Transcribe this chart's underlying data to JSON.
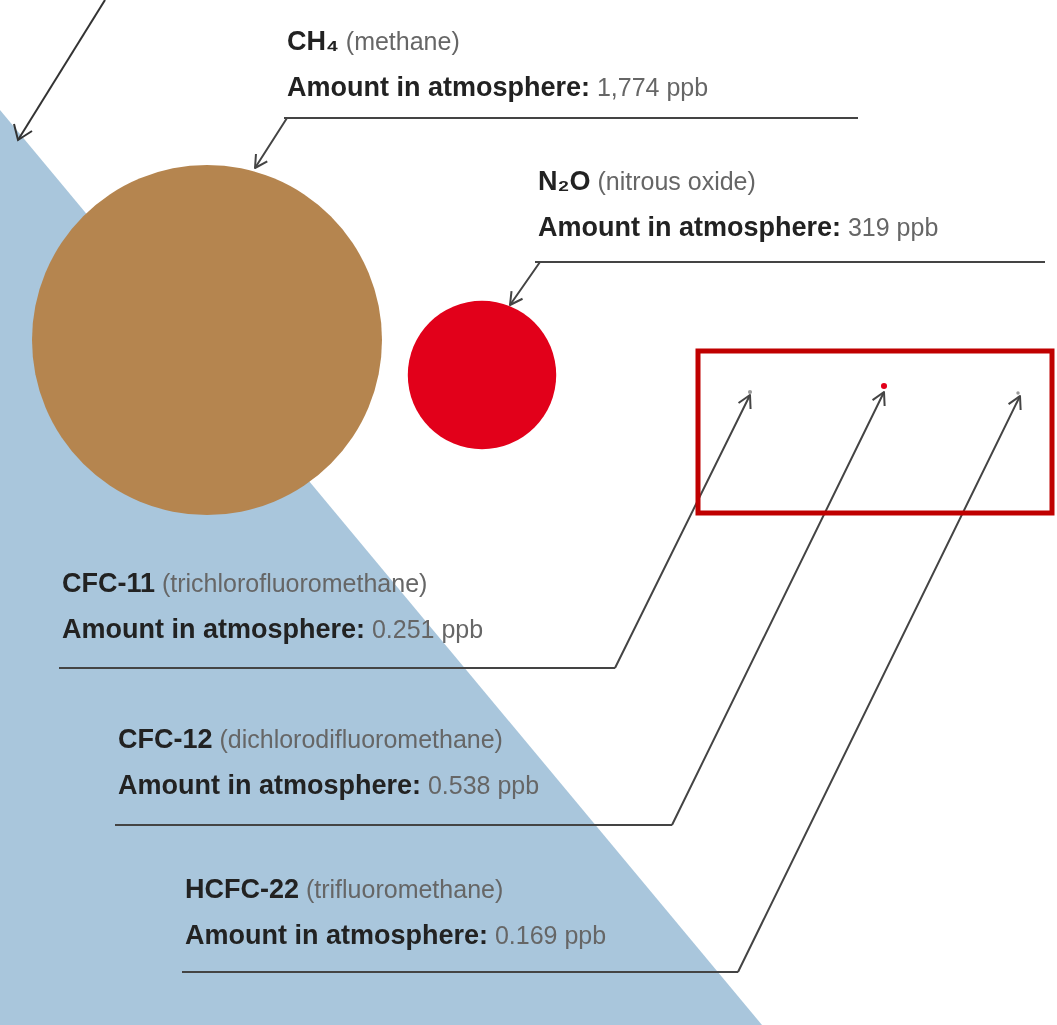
{
  "chart_data": {
    "type": "other",
    "categories": [
      "CH₄ (methane)",
      "N₂O (nitrous oxide)",
      "CFC-11 (trichlorofluoromethane)",
      "CFC-12 (dichlorodifluoromethane)",
      "HCFC-22 (trifluoromethane)"
    ],
    "values": [
      1774,
      319,
      0.251,
      0.538,
      0.169
    ],
    "value_labels": [
      "Amount in atmosphere: 1,774 ppb",
      "Amount in atmosphere: 319 ppb",
      "Amount in atmosphere: 0.251 ppb",
      "Amount in atmosphere: 0.538 ppb",
      "Amount in atmosphere: 0.169 ppb"
    ],
    "colors": [
      "#b5854f",
      "#e2001a",
      "#9a9a9a",
      "#e2001a",
      "#9a9a9a"
    ]
  }
}
